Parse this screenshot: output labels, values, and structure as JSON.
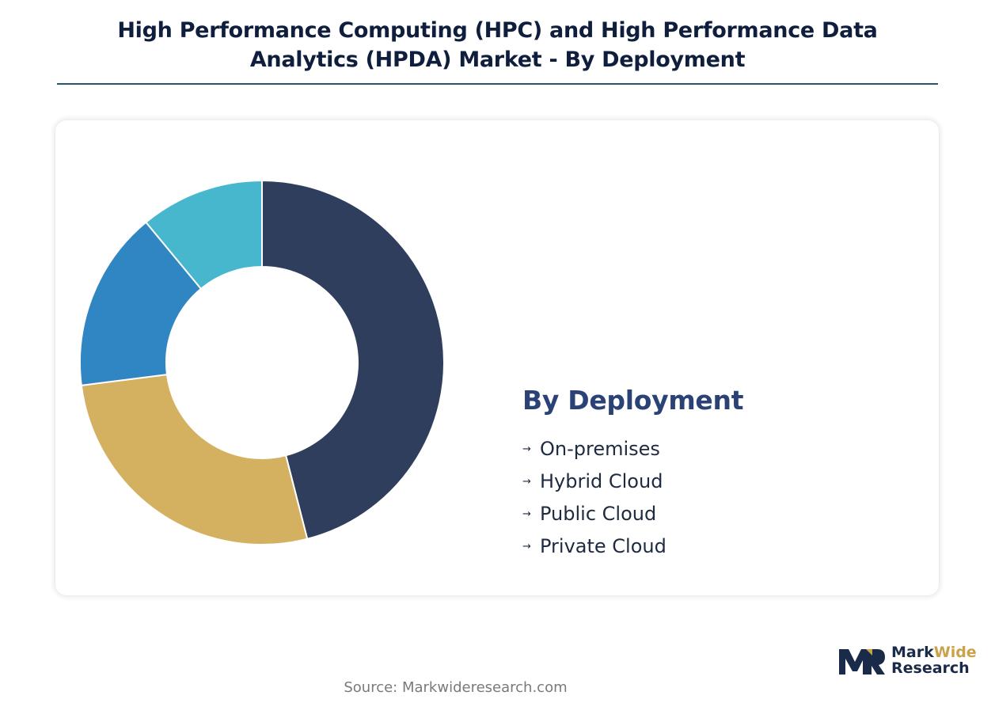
{
  "header": {
    "title_line1": "High Performance Computing (HPC) and High Performance Data",
    "title_line2": "Analytics (HPDA) Market - By Deployment"
  },
  "chart_data": {
    "type": "pie",
    "donut": true,
    "categories": [
      "On-premises",
      "Hybrid Cloud",
      "Public Cloud",
      "Private Cloud"
    ],
    "values": [
      46,
      27,
      16,
      11
    ],
    "colors": [
      "#2e3e5c",
      "#d3b160",
      "#2f86c2",
      "#46b7cd"
    ],
    "legend_title": "By Deployment",
    "legend_placement": "right"
  },
  "legend": {
    "title": "By Deployment",
    "items": [
      "On-premises",
      "Hybrid Cloud",
      "Public Cloud",
      "Private Cloud"
    ],
    "arrow": "→"
  },
  "footer": {
    "source": "Source: Markwideresearch.com"
  },
  "logo": {
    "word1": "Mark",
    "word2": "Wide",
    "word3": "Research",
    "colors": {
      "navy": "#1a2b4a",
      "gold": "#c9a24a"
    }
  }
}
